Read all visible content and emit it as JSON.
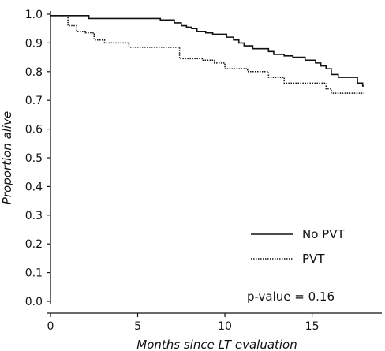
{
  "chart_data": {
    "type": "line",
    "xlabel": "Months since LT evaluation",
    "ylabel": "Proportion alive",
    "xlim": [
      0,
      19
    ],
    "ylim": [
      0,
      1
    ],
    "x_ticks": [
      "0",
      "5",
      "10",
      "15"
    ],
    "x_tick_values": [
      0,
      5,
      10,
      15
    ],
    "y_ticks": [
      "0.0",
      "0.1",
      "0.2",
      "0.3",
      "0.4",
      "0.5",
      "0.6",
      "0.7",
      "0.8",
      "0.9",
      "1.0"
    ],
    "y_tick_values": [
      0,
      0.1,
      0.2,
      0.3,
      0.4,
      0.5,
      0.6,
      0.7,
      0.8,
      0.9,
      1.0
    ],
    "grid": false,
    "legend_position": "bottom-right",
    "step": true,
    "series": [
      {
        "name": "No PVT",
        "style": "solid",
        "x": [
          0,
          2.2,
          6.3,
          7.1,
          7.5,
          7.8,
          8.1,
          8.4,
          8.9,
          9.3,
          10.1,
          10.5,
          10.8,
          11.1,
          11.6,
          12.5,
          12.8,
          13.4,
          13.9,
          14.6,
          15.2,
          15.5,
          15.8,
          16.1,
          16.5,
          17.6,
          17.9,
          18.0
        ],
        "y": [
          0.995,
          0.985,
          0.98,
          0.97,
          0.96,
          0.955,
          0.95,
          0.94,
          0.935,
          0.93,
          0.92,
          0.91,
          0.9,
          0.89,
          0.88,
          0.87,
          0.86,
          0.855,
          0.85,
          0.84,
          0.83,
          0.82,
          0.81,
          0.79,
          0.78,
          0.76,
          0.75,
          0.75
        ]
      },
      {
        "name": "PVT",
        "style": "dotted",
        "x": [
          0,
          1.0,
          1.5,
          2.0,
          2.5,
          3.1,
          4.5,
          7.4,
          8.7,
          9.4,
          10.0,
          11.3,
          12.5,
          13.4,
          14.1,
          15.8,
          16.1,
          18.0
        ],
        "y": [
          0.995,
          0.96,
          0.94,
          0.935,
          0.91,
          0.9,
          0.885,
          0.845,
          0.84,
          0.83,
          0.81,
          0.8,
          0.78,
          0.76,
          0.76,
          0.74,
          0.725,
          0.725
        ]
      }
    ],
    "annotations": [
      "p-value =  0.16"
    ]
  }
}
